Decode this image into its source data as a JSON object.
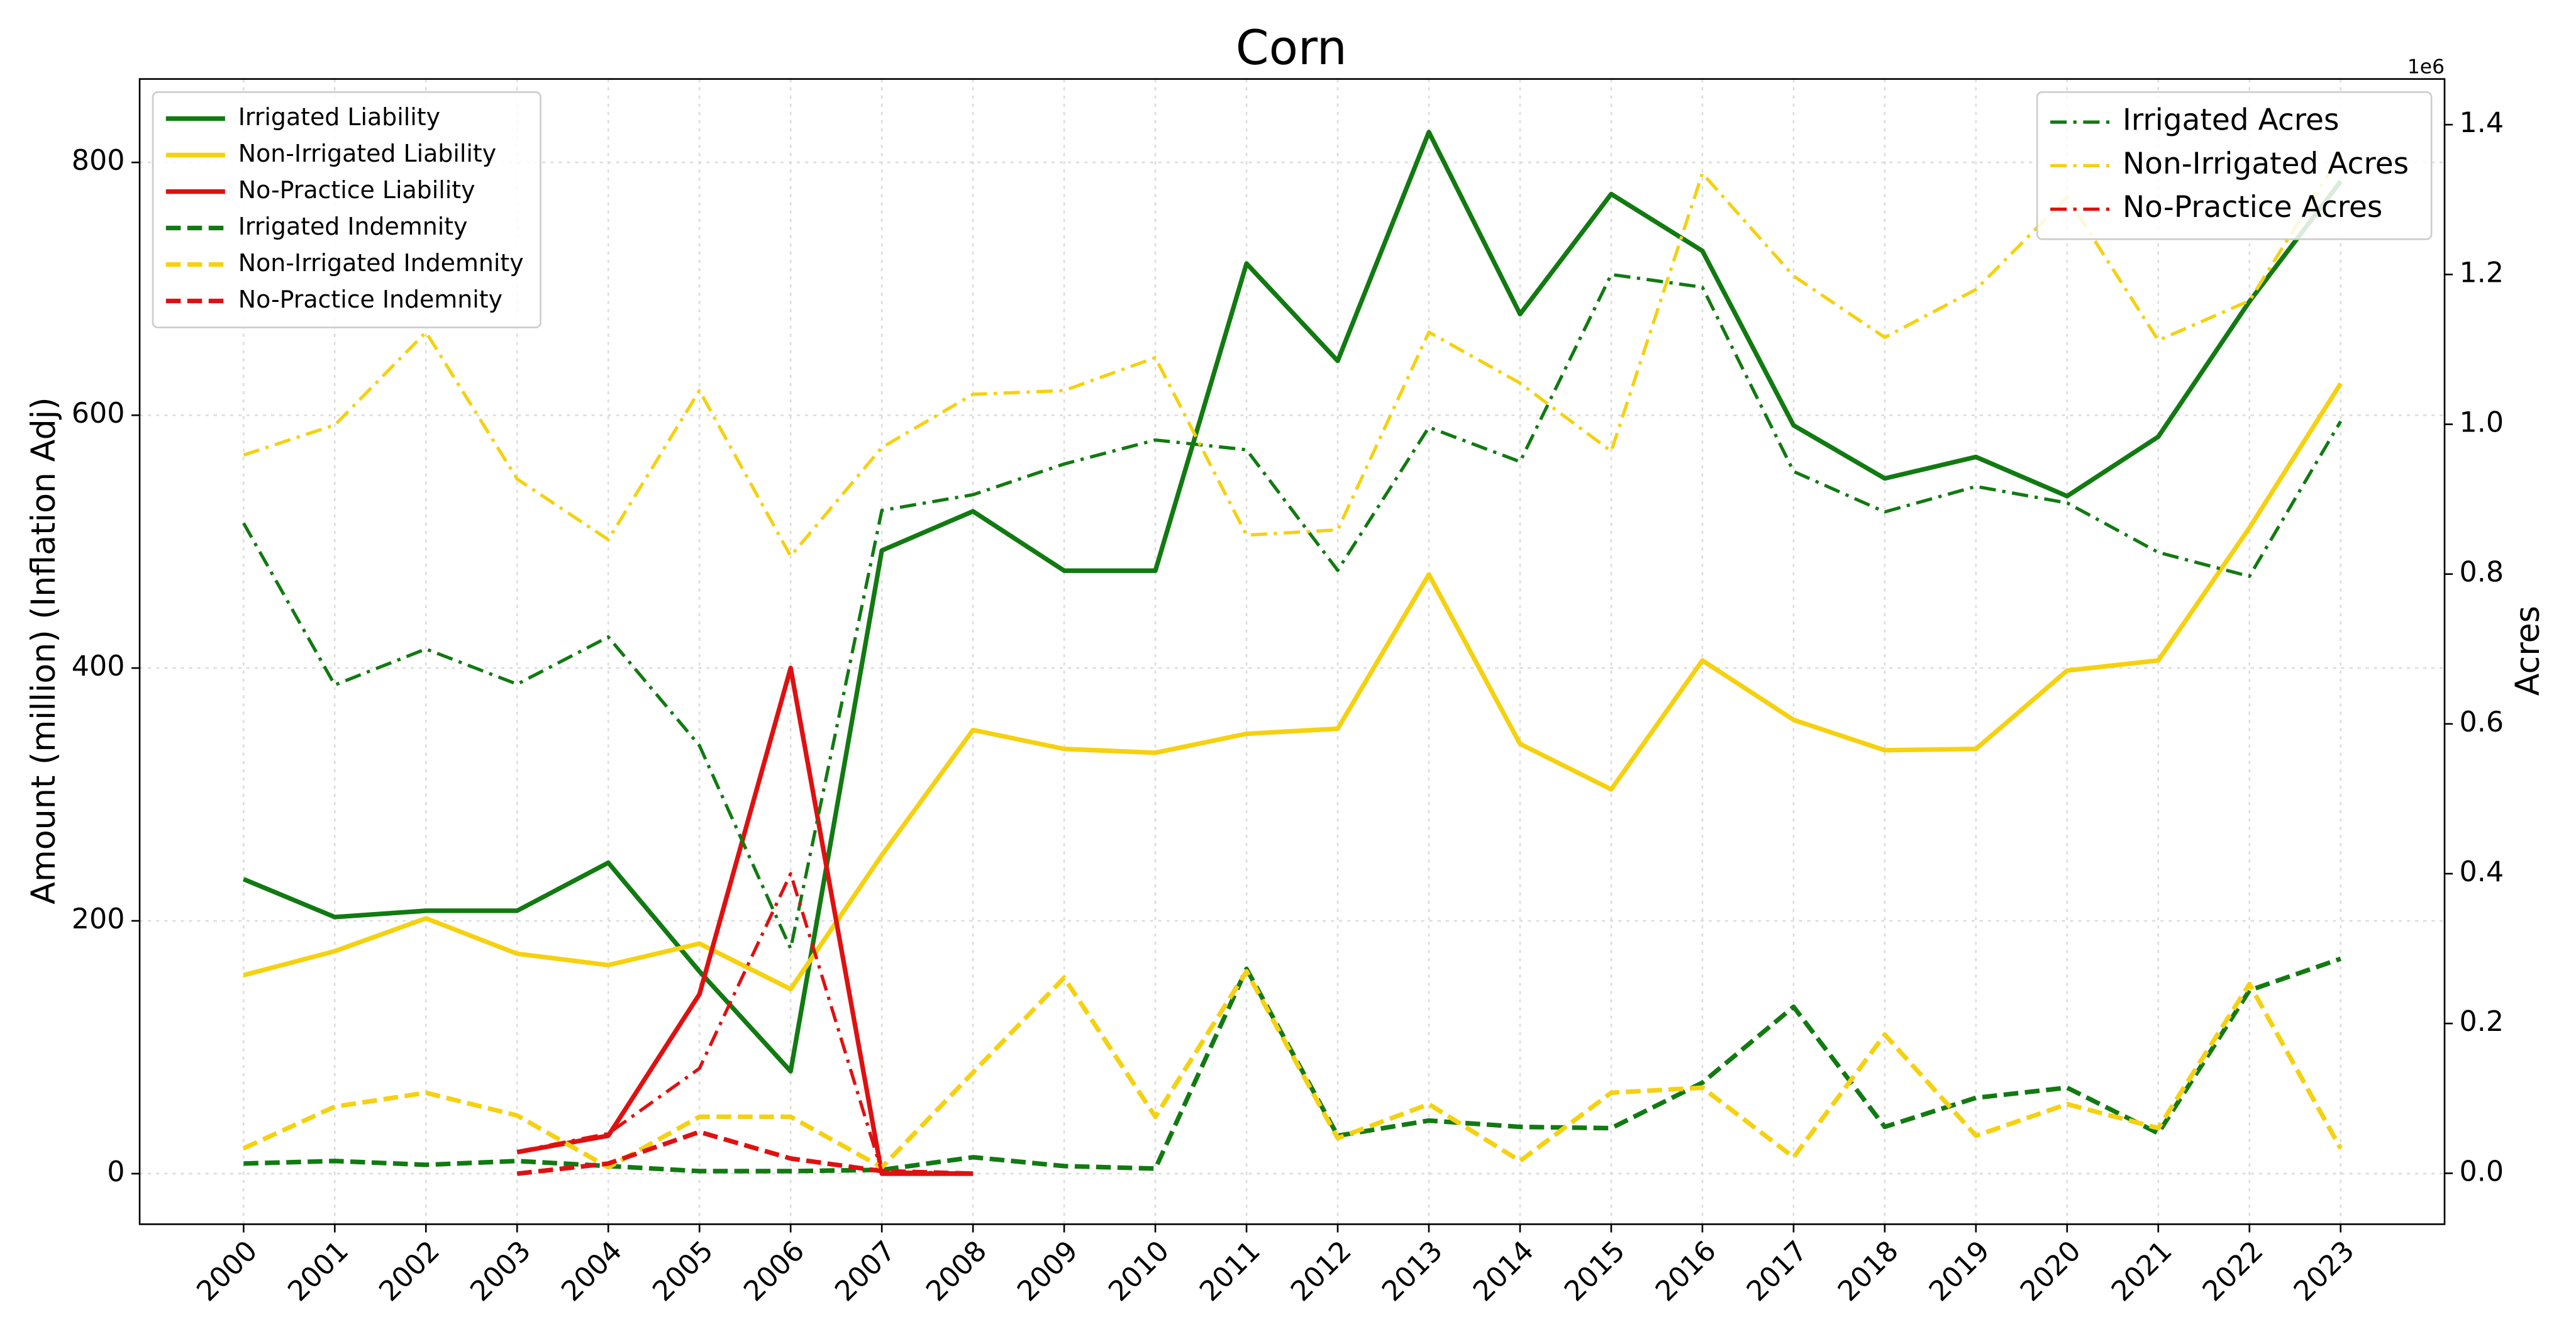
{
  "chart_data": {
    "type": "line",
    "title": "Corn",
    "ylabel": "Amount (million) (Inflation Adj)",
    "y2label": "Acres",
    "y2offset": "1e6",
    "grid": true,
    "legend": "upper left",
    "legend2": "upper right",
    "x": [
      2000,
      2001,
      2002,
      2003,
      2004,
      2005,
      2006,
      2007,
      2008,
      2009,
      2010,
      2011,
      2012,
      2013,
      2014,
      2015,
      2016,
      2017,
      2018,
      2019,
      2020,
      2021,
      2022,
      2023
    ],
    "xlim": [
      1998.86,
      2024.14
    ],
    "xticks": [
      2000,
      2001,
      2002,
      2003,
      2004,
      2005,
      2006,
      2007,
      2008,
      2009,
      2010,
      2011,
      2012,
      2013,
      2014,
      2015,
      2016,
      2017,
      2018,
      2019,
      2020,
      2021,
      2022,
      2023
    ],
    "ylim": [
      -40,
      866
    ],
    "yticks": [
      0,
      200,
      400,
      600,
      800
    ],
    "y2lim": [
      -68000,
      1461000
    ],
    "y2ticks": [
      {
        "value": 0,
        "label": "0.0"
      },
      {
        "value": 200000,
        "label": "0.2"
      },
      {
        "value": 400000,
        "label": "0.4"
      },
      {
        "value": 600000,
        "label": "0.6"
      },
      {
        "value": 800000,
        "label": "0.8"
      },
      {
        "value": 1000000,
        "label": "1.0"
      },
      {
        "value": 1200000,
        "label": "1.2"
      },
      {
        "value": 1400000,
        "label": "1.4"
      }
    ],
    "series": [
      {
        "name": "Irrigated Liability",
        "color": "#117a11",
        "linestyle": "solid",
        "axis": "y",
        "values": [
          233,
          203,
          208,
          208,
          246,
          160,
          81,
          493,
          524,
          477,
          477,
          720,
          643,
          824,
          680,
          775,
          730,
          592,
          550,
          567,
          536,
          583,
          690,
          785
        ]
      },
      {
        "name": "Non-Irrigated Liability",
        "color": "#f5d10f",
        "linestyle": "solid",
        "axis": "y",
        "values": [
          157,
          176,
          202,
          174,
          165,
          182,
          146,
          252,
          351,
          336,
          333,
          348,
          352,
          474,
          340,
          304,
          406,
          359,
          335,
          336,
          398,
          406,
          511,
          625
        ]
      },
      {
        "name": "No-Practice Liability",
        "color": "#e01010",
        "linestyle": "solid",
        "axis": "y",
        "values": [
          null,
          null,
          null,
          17,
          30,
          142,
          400,
          0,
          0,
          null,
          null,
          null,
          null,
          null,
          null,
          null,
          null,
          null,
          null,
          null,
          null,
          null,
          null,
          null
        ]
      },
      {
        "name": "Irrigated Indemnity",
        "color": "#117a11",
        "linestyle": "dashed",
        "axis": "y",
        "values": [
          8,
          10,
          7,
          10,
          6,
          2,
          2,
          3,
          13,
          6,
          4,
          162,
          30,
          42,
          37,
          36,
          72,
          132,
          37,
          60,
          68,
          32,
          145,
          170
        ]
      },
      {
        "name": "Non-Irrigated Indemnity",
        "color": "#f5d10f",
        "linestyle": "dashed",
        "axis": "y",
        "values": [
          20,
          53,
          64,
          46,
          5,
          45,
          45,
          5,
          80,
          155,
          45,
          160,
          28,
          55,
          10,
          64,
          68,
          13,
          110,
          30,
          55,
          36,
          150,
          20
        ]
      },
      {
        "name": "No-Practice Indemnity",
        "color": "#e01010",
        "linestyle": "dashed",
        "axis": "y",
        "values": [
          null,
          null,
          null,
          0,
          8,
          33,
          12,
          2,
          0,
          null,
          null,
          null,
          null,
          null,
          null,
          null,
          null,
          null,
          null,
          null,
          null,
          null,
          null,
          null
        ]
      },
      {
        "name": "Irrigated Acres",
        "color": "#117a11",
        "linestyle": "dashdot",
        "axis": "y2",
        "values": [
          868000,
          652000,
          700000,
          653000,
          716000,
          571000,
          300000,
          885000,
          906000,
          947000,
          979000,
          966000,
          805000,
          996000,
          950000,
          1200000,
          1183000,
          937000,
          883000,
          917000,
          895000,
          829000,
          797000,
          1004000
        ]
      },
      {
        "name": "Non-Irrigated Acres",
        "color": "#f5d10f",
        "linestyle": "dashdot",
        "axis": "y2",
        "values": [
          959000,
          999000,
          1123000,
          927000,
          846000,
          1045000,
          824000,
          969000,
          1040000,
          1045000,
          1089000,
          852000,
          859000,
          1123000,
          1055000,
          964000,
          1335000,
          1198000,
          1116000,
          1180000,
          1303000,
          1112000,
          1165000,
          1360000
        ]
      },
      {
        "name": "No-Practice Acres",
        "color": "#e01010",
        "linestyle": "dashdot",
        "axis": "y2",
        "values": [
          null,
          null,
          null,
          29000,
          53000,
          140000,
          400000,
          2000,
          0,
          null,
          null,
          null,
          null,
          null,
          null,
          null,
          null,
          null,
          null,
          null,
          null,
          null,
          null,
          null
        ]
      }
    ]
  }
}
